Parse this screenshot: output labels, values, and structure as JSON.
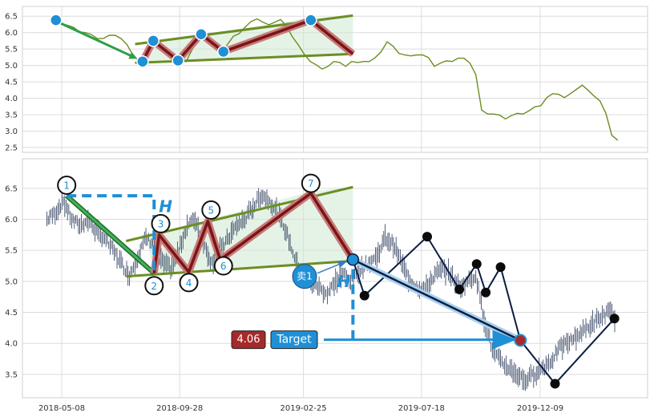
{
  "chart_data": [
    {
      "type": "line",
      "panel": "top",
      "ylim": [
        2.4,
        6.75
      ],
      "y_ticks": [
        "2.5",
        "3.0",
        "3.5",
        "4.0",
        "4.5",
        "5.0",
        "5.5",
        "6.0",
        "6.5"
      ],
      "grid": true,
      "line_color": "#6b8e23",
      "series": [
        {
          "values": [
            6.38,
            6.3,
            6.2,
            6.12,
            6.05,
            5.98,
            5.9,
            5.85,
            5.8,
            5.88,
            5.95,
            5.8,
            5.6,
            5.35,
            5.12,
            5.3,
            5.6,
            5.75,
            5.6,
            5.45,
            5.3,
            5.2,
            5.15,
            5.45,
            5.75,
            5.95,
            5.78,
            5.55,
            5.42,
            5.62,
            5.85,
            6.0,
            6.15,
            6.3,
            6.45,
            6.3,
            6.2,
            6.35,
            6.38,
            6.15,
            5.9,
            5.6,
            5.3,
            5.15,
            5.0,
            4.85,
            5.0,
            5.1,
            5.05,
            5.0,
            5.1,
            5.05,
            5.15,
            5.1,
            5.2,
            5.45,
            5.7,
            5.55,
            5.4,
            5.3,
            5.25,
            5.35,
            5.3,
            5.2,
            5.0,
            5.05,
            5.1,
            5.15,
            5.2,
            5.18,
            5.1,
            4.7,
            3.6,
            3.55,
            3.5,
            3.45,
            3.4,
            3.45,
            3.5,
            3.55,
            3.6,
            3.7,
            3.8,
            4.0,
            4.1,
            4.15,
            4.0,
            4.1,
            4.3,
            4.38,
            4.2,
            4.1,
            3.9,
            3.5,
            2.9,
            2.7
          ]
        }
      ],
      "pattern_points": [
        {
          "date": "2018-05-01",
          "y": 6.38
        },
        {
          "date": "2018-08-14",
          "y": 5.12
        },
        {
          "date": "2018-08-27",
          "y": 5.75
        },
        {
          "date": "2018-09-26",
          "y": 5.15
        },
        {
          "date": "2018-10-24",
          "y": 5.95
        },
        {
          "date": "2018-11-20",
          "y": 5.42
        },
        {
          "date": "2019-03-06",
          "y": 6.38
        },
        {
          "date": "2019-04-26",
          "y": 5.35
        }
      ]
    },
    {
      "type": "scatter",
      "panel": "bottom",
      "ylim": [
        3.15,
        6.95
      ],
      "y_ticks": [
        "3.5",
        "4.0",
        "4.5",
        "5.0",
        "5.5",
        "6.0",
        "6.5"
      ],
      "x_ticks": [
        "2018-05-08",
        "2018-09-28",
        "2019-02-25",
        "2019-07-18",
        "2019-12-09"
      ],
      "grid": true,
      "price_bars": [
        6.0,
        6.1,
        6.3,
        6.0,
        5.9,
        6.0,
        5.8,
        5.7,
        5.5,
        5.3,
        5.1,
        5.4,
        5.7,
        5.6,
        5.3,
        5.2,
        5.5,
        5.9,
        6.0,
        5.6,
        5.3,
        5.5,
        5.7,
        5.9,
        6.0,
        6.2,
        6.4,
        6.3,
        6.1,
        5.8,
        5.4,
        5.1,
        5.0,
        4.9,
        4.8,
        5.0,
        5.1,
        5.0,
        5.2,
        5.3,
        5.4,
        5.7,
        5.6,
        5.3,
        5.0,
        4.9,
        4.9,
        5.1,
        5.2,
        5.1,
        4.9,
        5.0,
        5.1,
        4.4,
        3.9,
        3.7,
        3.6,
        3.5,
        3.4,
        3.5,
        3.6,
        3.7,
        3.9,
        4.0,
        4.1,
        4.2,
        4.3,
        4.4,
        4.5,
        4.4
      ],
      "pattern_points": [
        {
          "label": "1",
          "date": "2018-05-14",
          "y": 6.55
        },
        {
          "label": "2",
          "date": "2018-08-28",
          "y": 4.93
        },
        {
          "label": "3",
          "date": "2018-09-05",
          "y": 5.93
        },
        {
          "label": "4",
          "date": "2018-10-09",
          "y": 4.98
        },
        {
          "label": "5",
          "date": "2018-11-05",
          "y": 6.15
        },
        {
          "label": "6",
          "date": "2018-11-20",
          "y": 5.25
        },
        {
          "label": "7",
          "date": "2019-03-06",
          "y": 6.58
        }
      ],
      "upper_trendline": [
        {
          "date": "2018-07-25",
          "y": 5.65
        },
        {
          "date": "2019-04-26",
          "y": 6.52
        }
      ],
      "lower_trendline": [
        {
          "date": "2018-07-25",
          "y": 5.08
        },
        {
          "date": "2019-04-26",
          "y": 5.33
        }
      ],
      "zigzag": [
        {
          "date": "2019-04-26",
          "y": 5.35
        },
        {
          "date": "2019-05-10",
          "y": 4.77
        },
        {
          "date": "2019-07-25",
          "y": 5.72
        },
        {
          "date": "2019-09-02",
          "y": 4.87
        },
        {
          "date": "2019-09-23",
          "y": 5.28
        },
        {
          "date": "2019-10-04",
          "y": 4.82
        },
        {
          "date": "2019-10-22",
          "y": 5.23
        },
        {
          "date": "2019-11-15",
          "y": 4.05
        },
        {
          "date": "2019-12-27",
          "y": 3.35
        },
        {
          "date": "2020-03-08",
          "y": 4.4
        }
      ],
      "target_projection": [
        {
          "date": "2019-04-26",
          "y": 5.35
        },
        {
          "date": "2019-11-15",
          "y": 4.05
        }
      ],
      "annotations": {
        "height_label": "H",
        "sell_label": "卖1",
        "value_label": "4.06",
        "target_label": "Target"
      }
    }
  ]
}
